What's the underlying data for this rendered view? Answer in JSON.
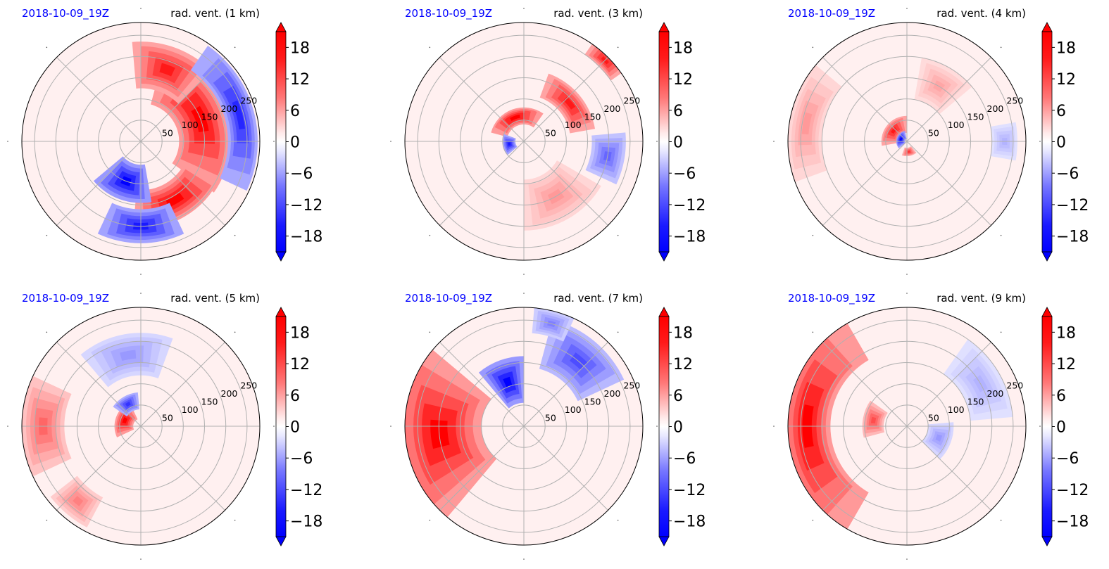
{
  "chart_data": [
    {
      "type": "polar-contour",
      "date_label": "2018-10-09_19Z",
      "title": "rad. vent. (1 km)",
      "radial_ticks": [
        "50",
        "100",
        "150",
        "200",
        "250"
      ],
      "rlim": [
        0,
        280
      ],
      "colorbar": {
        "ticks": [
          "18",
          "12",
          "6",
          "0",
          "−6",
          "−12",
          "−18"
        ],
        "range": [
          -21,
          21
        ],
        "extend": "both"
      },
      "blobs": [
        {
          "sign": "pos",
          "intensity": 1.0,
          "angle_deg": 20,
          "r": 150,
          "sr": 60,
          "sa": 55
        },
        {
          "sign": "pos",
          "intensity": 1.0,
          "angle_deg": -60,
          "r": 160,
          "sr": 45,
          "sa": 35
        },
        {
          "sign": "pos",
          "intensity": 0.9,
          "angle_deg": 70,
          "r": 180,
          "sr": 55,
          "sa": 25
        },
        {
          "sign": "neg",
          "intensity": 1.0,
          "angle_deg": -110,
          "r": 100,
          "sr": 45,
          "sa": 30
        },
        {
          "sign": "neg",
          "intensity": 0.9,
          "angle_deg": -90,
          "r": 200,
          "sr": 40,
          "sa": 25
        },
        {
          "sign": "neg",
          "intensity": 0.85,
          "angle_deg": 15,
          "r": 240,
          "sr": 35,
          "sa": 40
        }
      ]
    },
    {
      "type": "polar-contour",
      "date_label": "2018-10-09_19Z",
      "title": "rad. vent. (3 km)",
      "radial_ticks": [
        "50",
        "100",
        "150",
        "200",
        "250"
      ],
      "rlim": [
        0,
        280
      ],
      "colorbar": {
        "ticks": [
          "18",
          "12",
          "6",
          "0",
          "−6",
          "−12",
          "−18"
        ],
        "range": [
          -21,
          21
        ],
        "extend": "both"
      },
      "blobs": [
        {
          "sign": "pos",
          "intensity": 1.0,
          "angle_deg": 110,
          "r": 60,
          "sr": 20,
          "sa": 55
        },
        {
          "sign": "pos",
          "intensity": 0.9,
          "angle_deg": 40,
          "r": 140,
          "sr": 30,
          "sa": 30
        },
        {
          "sign": "pos",
          "intensity": 0.9,
          "angle_deg": 45,
          "r": 270,
          "sr": 20,
          "sa": 10
        },
        {
          "sign": "neg",
          "intensity": 0.9,
          "angle_deg": 190,
          "r": 35,
          "sr": 15,
          "sa": 30
        },
        {
          "sign": "neg",
          "intensity": 0.6,
          "angle_deg": -10,
          "r": 200,
          "sr": 40,
          "sa": 15
        },
        {
          "sign": "pos",
          "intensity": 0.4,
          "angle_deg": -60,
          "r": 150,
          "sr": 60,
          "sa": 30
        }
      ]
    },
    {
      "type": "polar-contour",
      "date_label": "2018-10-09_19Z",
      "title": "rad. vent. (4 km)",
      "radial_ticks": [
        "50",
        "100",
        "150",
        "200",
        "250"
      ],
      "rlim": [
        0,
        280
      ],
      "colorbar": {
        "ticks": [
          "18",
          "12",
          "6",
          "0",
          "−6",
          "−12",
          "−18"
        ],
        "range": [
          -21,
          21
        ],
        "extend": "both"
      },
      "blobs": [
        {
          "sign": "pos",
          "intensity": 0.9,
          "angle_deg": 140,
          "r": 40,
          "sr": 20,
          "sa": 50
        },
        {
          "sign": "neg",
          "intensity": 1.0,
          "angle_deg": 160,
          "r": 15,
          "sr": 10,
          "sa": 60
        },
        {
          "sign": "pos",
          "intensity": 0.8,
          "angle_deg": -80,
          "r": 25,
          "sr": 10,
          "sa": 30
        },
        {
          "sign": "pos",
          "intensity": 0.4,
          "angle_deg": 170,
          "r": 240,
          "sr": 40,
          "sa": 30
        },
        {
          "sign": "pos",
          "intensity": 0.35,
          "angle_deg": 60,
          "r": 150,
          "sr": 50,
          "sa": 20
        },
        {
          "sign": "neg",
          "intensity": 0.3,
          "angle_deg": 0,
          "r": 230,
          "sr": 30,
          "sa": 10
        }
      ]
    },
    {
      "type": "polar-contour",
      "date_label": "2018-10-09_19Z",
      "title": "rad. vent. (5 km)",
      "radial_ticks": [
        "50",
        "100",
        "150",
        "200",
        "250"
      ],
      "rlim": [
        0,
        280
      ],
      "colorbar": {
        "ticks": [
          "18",
          "12",
          "6",
          "0",
          "−6",
          "−12",
          "−18"
        ],
        "range": [
          -21,
          21
        ],
        "extend": "both"
      },
      "blobs": [
        {
          "sign": "pos",
          "intensity": 1.0,
          "angle_deg": 160,
          "r": 40,
          "sr": 22,
          "sa": 45
        },
        {
          "sign": "neg",
          "intensity": 0.8,
          "angle_deg": 120,
          "r": 60,
          "sr": 20,
          "sa": 25
        },
        {
          "sign": "pos",
          "intensity": 0.6,
          "angle_deg": 180,
          "r": 230,
          "sr": 50,
          "sa": 25
        },
        {
          "sign": "neg",
          "intensity": 0.4,
          "angle_deg": 100,
          "r": 170,
          "sr": 50,
          "sa": 30
        },
        {
          "sign": "pos",
          "intensity": 0.5,
          "angle_deg": -130,
          "r": 230,
          "sr": 40,
          "sa": 12
        }
      ]
    },
    {
      "type": "polar-contour",
      "date_label": "2018-10-09_19Z",
      "title": "rad. vent. (7 km)",
      "radial_ticks": [
        "50",
        "100",
        "150",
        "200",
        "250"
      ],
      "rlim": [
        0,
        280
      ],
      "colorbar": {
        "ticks": [
          "18",
          "12",
          "6",
          "0",
          "−6",
          "−12",
          "−18"
        ],
        "range": [
          -21,
          21
        ],
        "extend": "both"
      },
      "blobs": [
        {
          "sign": "pos",
          "intensity": 1.0,
          "angle_deg": 185,
          "r": 200,
          "sr": 100,
          "sa": 45
        },
        {
          "sign": "neg",
          "intensity": 1.0,
          "angle_deg": 110,
          "r": 110,
          "sr": 55,
          "sa": 20
        },
        {
          "sign": "neg",
          "intensity": 0.7,
          "angle_deg": 50,
          "r": 200,
          "sr": 60,
          "sa": 25
        },
        {
          "sign": "neg",
          "intensity": 0.5,
          "angle_deg": 75,
          "r": 250,
          "sr": 30,
          "sa": 10
        }
      ]
    },
    {
      "type": "polar-contour",
      "date_label": "2018-10-09_19Z",
      "title": "rad. vent. (9 km)",
      "radial_ticks": [
        "50",
        "100",
        "150",
        "200",
        "250"
      ],
      "rlim": [
        0,
        280
      ],
      "colorbar": {
        "ticks": [
          "18",
          "12",
          "6",
          "0",
          "−6",
          "−12",
          "−18"
        ],
        "range": [
          -21,
          21
        ],
        "extend": "both"
      },
      "blobs": [
        {
          "sign": "pos",
          "intensity": 1.0,
          "angle_deg": 180,
          "r": 235,
          "sr": 55,
          "sa": 60
        },
        {
          "sign": "pos",
          "intensity": 0.7,
          "angle_deg": 170,
          "r": 80,
          "sr": 25,
          "sa": 25
        },
        {
          "sign": "neg",
          "intensity": 0.4,
          "angle_deg": -20,
          "r": 80,
          "sr": 30,
          "sa": 25
        },
        {
          "sign": "neg",
          "intensity": 0.3,
          "angle_deg": 30,
          "r": 200,
          "sr": 50,
          "sa": 25
        }
      ]
    }
  ]
}
